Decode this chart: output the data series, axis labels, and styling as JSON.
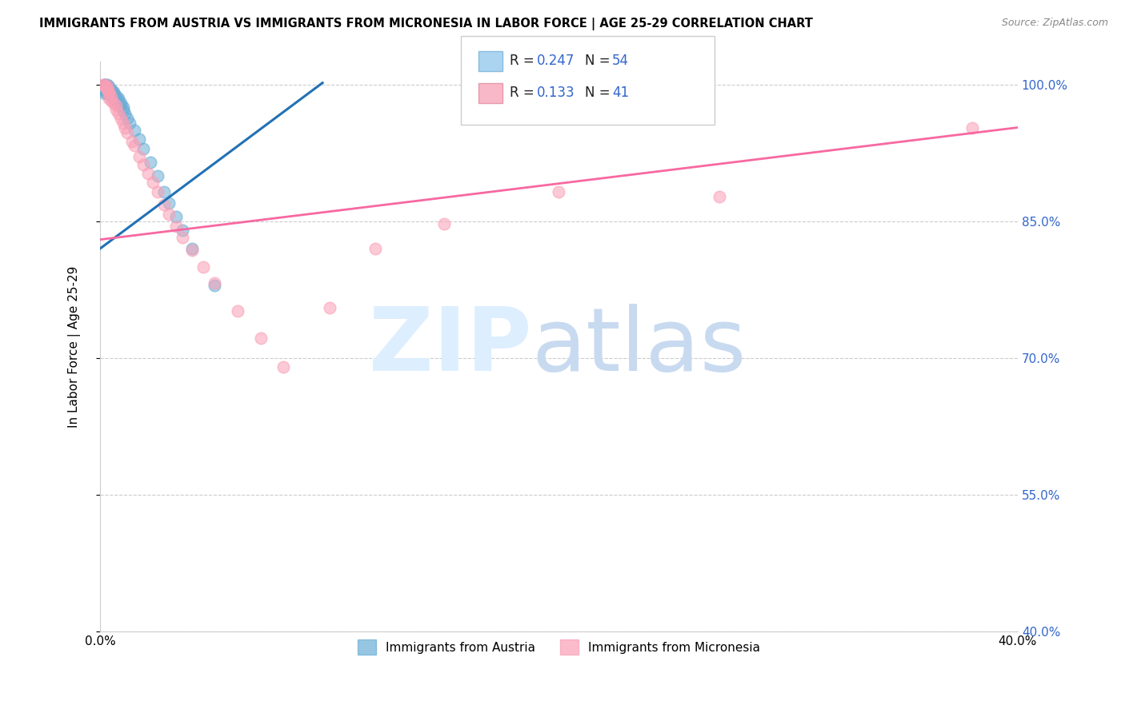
{
  "title": "IMMIGRANTS FROM AUSTRIA VS IMMIGRANTS FROM MICRONESIA IN LABOR FORCE | AGE 25-29 CORRELATION CHART",
  "source": "Source: ZipAtlas.com",
  "ylabel": "In Labor Force | Age 25-29",
  "xlim": [
    0.0,
    0.4
  ],
  "ylim": [
    0.4,
    1.025
  ],
  "xticks": [
    0.0,
    0.05,
    0.1,
    0.15,
    0.2,
    0.25,
    0.3,
    0.35,
    0.4
  ],
  "xticklabels": [
    "0.0%",
    "",
    "",
    "",
    "",
    "",
    "",
    "",
    "40.0%"
  ],
  "yticks": [
    0.4,
    0.55,
    0.7,
    0.85,
    1.0
  ],
  "austria_R": 0.247,
  "austria_N": 54,
  "micronesia_R": 0.133,
  "micronesia_N": 41,
  "austria_color": "#6baed6",
  "micronesia_color": "#fa9fb5",
  "austria_line_color": "#2171b5",
  "micronesia_line_color": "#f768a1",
  "austria_x": [
    0.001,
    0.001,
    0.001,
    0.002,
    0.002,
    0.002,
    0.002,
    0.002,
    0.002,
    0.002,
    0.003,
    0.003,
    0.003,
    0.003,
    0.003,
    0.003,
    0.003,
    0.004,
    0.004,
    0.004,
    0.004,
    0.004,
    0.005,
    0.005,
    0.005,
    0.005,
    0.006,
    0.006,
    0.006,
    0.006,
    0.007,
    0.007,
    0.007,
    0.008,
    0.008,
    0.008,
    0.009,
    0.009,
    0.01,
    0.01,
    0.011,
    0.012,
    0.013,
    0.015,
    0.017,
    0.019,
    0.022,
    0.025,
    0.028,
    0.03,
    0.033,
    0.036,
    0.04,
    0.05
  ],
  "austria_y": [
    0.998,
    0.997,
    0.995,
    1.0,
    1.0,
    1.0,
    0.997,
    0.995,
    0.993,
    0.99,
    1.0,
    0.999,
    0.998,
    0.996,
    0.994,
    0.992,
    0.99,
    0.998,
    0.996,
    0.994,
    0.992,
    0.99,
    0.995,
    0.993,
    0.99,
    0.988,
    0.992,
    0.99,
    0.987,
    0.985,
    0.988,
    0.985,
    0.982,
    0.985,
    0.982,
    0.979,
    0.98,
    0.977,
    0.975,
    0.972,
    0.968,
    0.963,
    0.958,
    0.95,
    0.94,
    0.93,
    0.915,
    0.9,
    0.882,
    0.87,
    0.855,
    0.84,
    0.82,
    0.78
  ],
  "micronesia_x": [
    0.001,
    0.002,
    0.002,
    0.003,
    0.003,
    0.004,
    0.004,
    0.004,
    0.005,
    0.005,
    0.006,
    0.007,
    0.007,
    0.008,
    0.009,
    0.01,
    0.011,
    0.012,
    0.014,
    0.015,
    0.017,
    0.019,
    0.021,
    0.023,
    0.025,
    0.028,
    0.03,
    0.033,
    0.036,
    0.04,
    0.045,
    0.05,
    0.06,
    0.07,
    0.08,
    0.1,
    0.12,
    0.15,
    0.2,
    0.27,
    0.38
  ],
  "micronesia_y": [
    1.0,
    1.0,
    0.998,
    0.998,
    0.995,
    0.993,
    0.99,
    0.985,
    0.987,
    0.982,
    0.98,
    0.977,
    0.973,
    0.968,
    0.963,
    0.958,
    0.953,
    0.947,
    0.938,
    0.933,
    0.921,
    0.912,
    0.903,
    0.893,
    0.882,
    0.868,
    0.858,
    0.845,
    0.832,
    0.818,
    0.8,
    0.782,
    0.752,
    0.722,
    0.69,
    0.755,
    0.82,
    0.847,
    0.882,
    0.877,
    0.953
  ],
  "austria_trend_x0": 0.0,
  "austria_trend_y0": 0.82,
  "austria_trend_x1": 0.097,
  "austria_trend_y1": 1.002,
  "micronesia_trend_x0": 0.0,
  "micronesia_trend_x1": 0.4,
  "micronesia_trend_y0": 0.83,
  "micronesia_trend_y1": 0.953
}
